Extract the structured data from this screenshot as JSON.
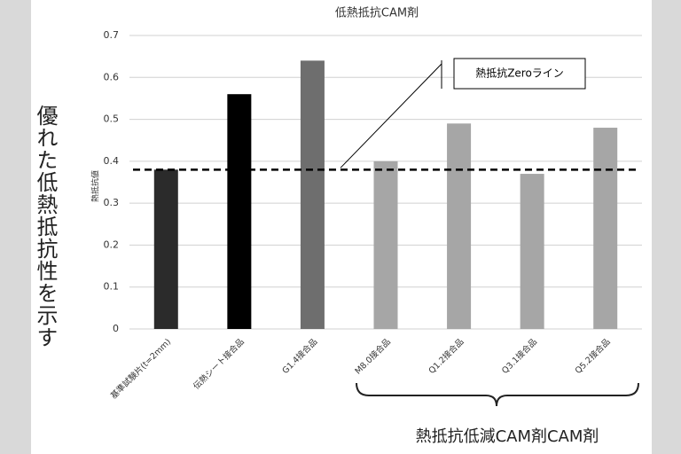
{
  "chart_data": {
    "type": "bar",
    "title": "低熱抵抗CAM剤",
    "y_label": "熱抵抗値",
    "categories": [
      "基準試験片(t=2mm)",
      "伝熱シート接合品",
      "G1.4接合品",
      "M8.0接合品",
      "Q1.2接合品",
      "Q3.1接合品",
      "Q5.2接合品"
    ],
    "values": [
      0.38,
      0.56,
      0.64,
      0.4,
      0.49,
      0.37,
      0.48
    ],
    "colors": [
      "#2b2b2b",
      "#000000",
      "#6e6e6e",
      "#a6a6a6",
      "#a6a6a6",
      "#a6a6a6",
      "#a6a6a6"
    ],
    "ylim": [
      0,
      0.7
    ],
    "yticks": [
      0,
      0.1,
      0.2,
      0.3,
      0.4,
      0.5,
      0.6,
      0.7
    ],
    "grid": true,
    "reference_line": {
      "value": 0.38,
      "label": "熱抵抗Zeroライン"
    },
    "side_annotation": "優れた低熱抵抗性を示す",
    "group_annotation": "熱抵抗低減CAM剤CAM剤"
  }
}
